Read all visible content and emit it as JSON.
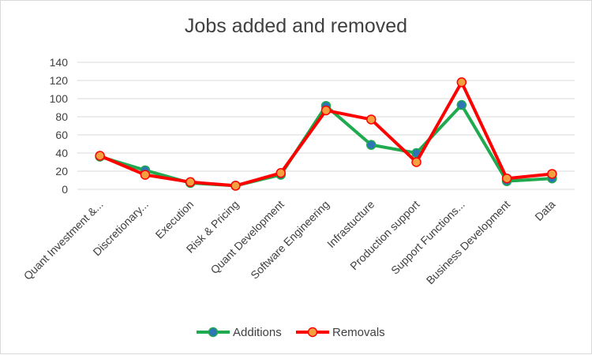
{
  "chart_data": {
    "type": "line",
    "title": "Jobs added and removed",
    "xlabel": "",
    "ylabel": "",
    "ylim": [
      0,
      140
    ],
    "yticks": [
      0,
      20,
      40,
      60,
      80,
      100,
      120,
      140
    ],
    "grid": true,
    "legend_position": "bottom",
    "categories": [
      "Quant Investment &...",
      "Discretionary...",
      "Execution",
      "Risk & Pricing",
      "Quant Development",
      "Software Engineering",
      "Infrastucture",
      "Production support",
      "Support Functions...",
      "Business Development",
      "Data"
    ],
    "series": [
      {
        "name": "Additions",
        "color": "#1faa4f",
        "marker_color": "#2e75b6",
        "values": [
          36,
          21,
          7,
          4,
          16,
          92,
          49,
          40,
          93,
          9,
          12
        ]
      },
      {
        "name": "Removals",
        "color": "#ff0000",
        "marker_color": "#f4a040",
        "values": [
          37,
          16,
          8,
          4,
          18,
          87,
          77,
          30,
          118,
          12,
          17
        ]
      }
    ]
  }
}
